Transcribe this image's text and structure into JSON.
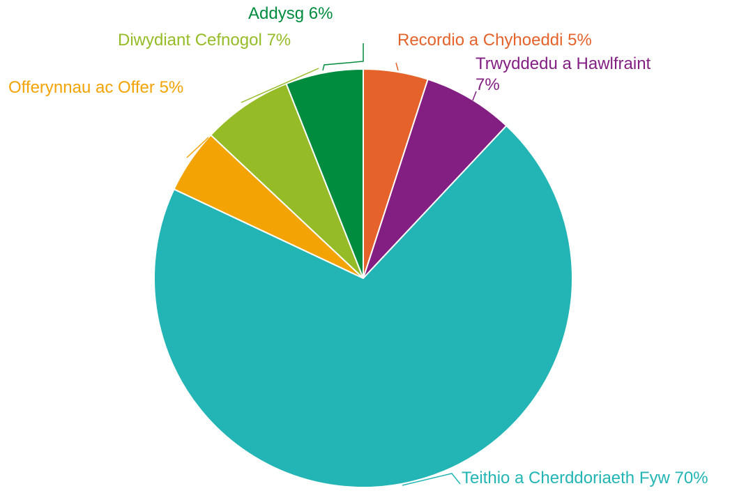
{
  "chart_data": {
    "type": "pie",
    "title": "",
    "start_angle_deg": 0,
    "direction": "clockwise",
    "slice_border_color": "#ffffff",
    "slices": [
      {
        "label": "Recordio a Chyhoeddi",
        "value": 5,
        "value_label": "5%",
        "color": "#E5622A"
      },
      {
        "label": "Trwyddedu a Hawlfraint",
        "value": 7,
        "value_label": "7%",
        "color": "#831F82"
      },
      {
        "label": "Teithio a Cherddoriaeth Fyw",
        "value": 70,
        "value_label": "70%",
        "color": "#23B5B5"
      },
      {
        "label": "Offerynnau ac Offer",
        "value": 5,
        "value_label": "5%",
        "color": "#F3A304"
      },
      {
        "label": "Diwydiant Cefnogol",
        "value": 7,
        "value_label": "7%",
        "color": "#95BC26"
      },
      {
        "label": "Addysg",
        "value": 6,
        "value_label": "6%",
        "color": "#008C3F"
      }
    ]
  }
}
